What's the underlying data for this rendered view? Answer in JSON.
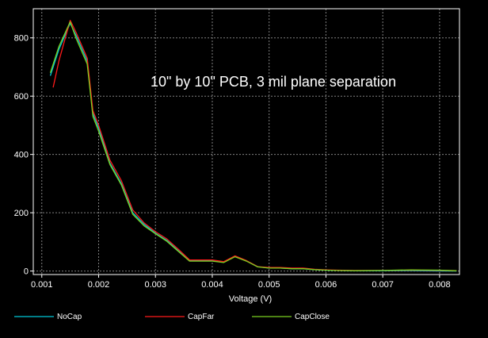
{
  "chart_data": {
    "type": "line",
    "title": "",
    "annotation": "10\" by 10\" PCB, 3 mil plane separation",
    "xlabel": "Voltage (V)",
    "ylabel": "",
    "xlim": [
      0.00085,
      0.00835
    ],
    "ylim": [
      -12,
      900
    ],
    "x_ticks": [
      0.001,
      0.002,
      0.003,
      0.004,
      0.005,
      0.006,
      0.007,
      0.008
    ],
    "x_tick_labels": [
      "0.001",
      "0.002",
      "0.003",
      "0.004",
      "0.005",
      "0.006",
      "0.007",
      "0.008"
    ],
    "y_ticks": [
      0,
      200,
      400,
      600,
      800
    ],
    "y_tick_labels": [
      "0",
      "200",
      "400",
      "600",
      "800"
    ],
    "grid": true,
    "legend_position": "bottom",
    "colors": {
      "background": "#000000",
      "axis": "#ffffff",
      "grid": "#808080"
    },
    "series": [
      {
        "name": "NoCap",
        "color": "#00c8d8",
        "x": [
          0.00115,
          0.0013,
          0.0015,
          0.0016,
          0.0018,
          0.0019,
          0.002,
          0.0022,
          0.0024,
          0.0026,
          0.0028,
          0.003,
          0.0032,
          0.0034,
          0.0036,
          0.0038,
          0.004,
          0.0042,
          0.0044,
          0.0046,
          0.0048,
          0.005,
          0.0052,
          0.0054,
          0.0056,
          0.0058,
          0.006,
          0.0062,
          0.0065,
          0.007,
          0.0075,
          0.008,
          0.0083
        ],
        "y": [
          670,
          760,
          850,
          810,
          720,
          540,
          490,
          370,
          300,
          200,
          160,
          130,
          105,
          70,
          35,
          35,
          35,
          30,
          50,
          35,
          15,
          10,
          10,
          8,
          8,
          5,
          3,
          2,
          1,
          1,
          1,
          0,
          0
        ]
      },
      {
        "name": "CapFar",
        "color": "#ff1a1a",
        "x": [
          0.0012,
          0.0013,
          0.0015,
          0.0016,
          0.0018,
          0.0019,
          0.002,
          0.0022,
          0.0024,
          0.0026,
          0.0028,
          0.003,
          0.0032,
          0.0034,
          0.0036,
          0.0038,
          0.004,
          0.0042,
          0.0044,
          0.0046,
          0.0048,
          0.005,
          0.0052,
          0.0054,
          0.0056,
          0.0058,
          0.006,
          0.0062,
          0.0065,
          0.007,
          0.0075,
          0.008,
          0.0083
        ],
        "y": [
          630,
          720,
          860,
          820,
          730,
          550,
          500,
          380,
          310,
          210,
          165,
          135,
          110,
          75,
          38,
          38,
          38,
          32,
          52,
          36,
          15,
          12,
          12,
          10,
          10,
          6,
          4,
          3,
          2,
          2,
          3,
          2,
          1
        ]
      },
      {
        "name": "CapClose",
        "color": "#7ad020",
        "x": [
          0.00115,
          0.0013,
          0.0015,
          0.0016,
          0.0018,
          0.0019,
          0.002,
          0.0022,
          0.0024,
          0.0026,
          0.0028,
          0.003,
          0.0032,
          0.0034,
          0.0036,
          0.0038,
          0.004,
          0.0042,
          0.0044,
          0.0046,
          0.0048,
          0.005,
          0.0052,
          0.0054,
          0.0056,
          0.0058,
          0.006,
          0.0062,
          0.0065,
          0.007,
          0.0075,
          0.008,
          0.0083
        ],
        "y": [
          680,
          770,
          855,
          800,
          710,
          530,
          480,
          365,
          295,
          195,
          155,
          128,
          102,
          68,
          34,
          34,
          34,
          29,
          49,
          34,
          14,
          10,
          10,
          8,
          8,
          5,
          3,
          2,
          1,
          2,
          4,
          3,
          1
        ]
      }
    ]
  }
}
